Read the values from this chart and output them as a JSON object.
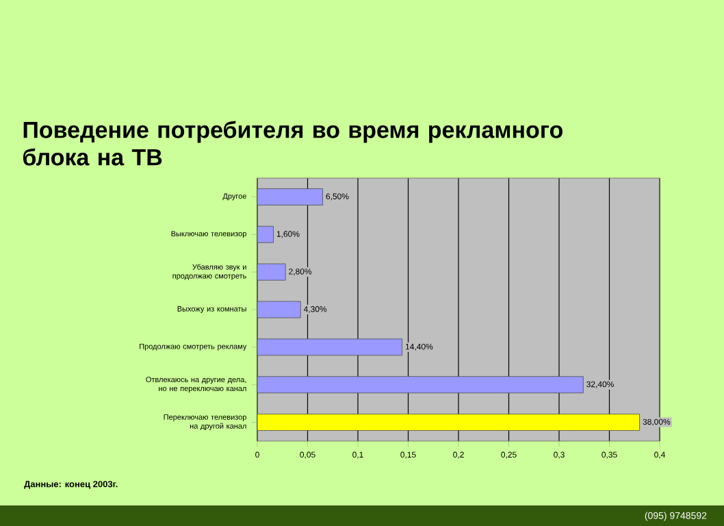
{
  "chart_data": {
    "type": "bar",
    "orientation": "horizontal",
    "title": "Поведение потребителя во время рекламного блока на ТВ",
    "categories": [
      "Другое",
      "Выключаю телевизор",
      "Убавляю звук и продолжаю смотреть",
      "Выхожу из комнаты",
      "Продолжаю смотреть рекламу",
      "Отвлекаюсь на другие дела, но не переключаю канал",
      "Переключаю телевизор на другой канал"
    ],
    "values": [
      0.065,
      0.016,
      0.028,
      0.043,
      0.144,
      0.324,
      0.38
    ],
    "value_labels": [
      "6,50%",
      "1,60%",
      "2,80%",
      "4,30%",
      "14,40%",
      "32,40%",
      "38,00%"
    ],
    "colors": [
      "#9999ff",
      "#9999ff",
      "#9999ff",
      "#9999ff",
      "#9999ff",
      "#9999ff",
      "#ffff00"
    ],
    "xlim": [
      0,
      0.4
    ],
    "xticks": [
      0,
      {
        "value": 0.05,
        "label": "0,05"
      },
      {
        "value": 0.1,
        "label": "0,1"
      },
      {
        "value": 0.15,
        "label": "0,15"
      },
      {
        "value": 0.2,
        "label": "0,2"
      },
      {
        "value": 0.25,
        "label": "0,25"
      },
      {
        "value": 0.3,
        "label": "0,3"
      },
      {
        "value": 0.35,
        "label": "0,35"
      },
      {
        "value": 0.4,
        "label": "0,4"
      }
    ],
    "grid": "x",
    "annotations": [
      "Данные: конец 2003г.",
      "(095) 9748592"
    ]
  }
}
